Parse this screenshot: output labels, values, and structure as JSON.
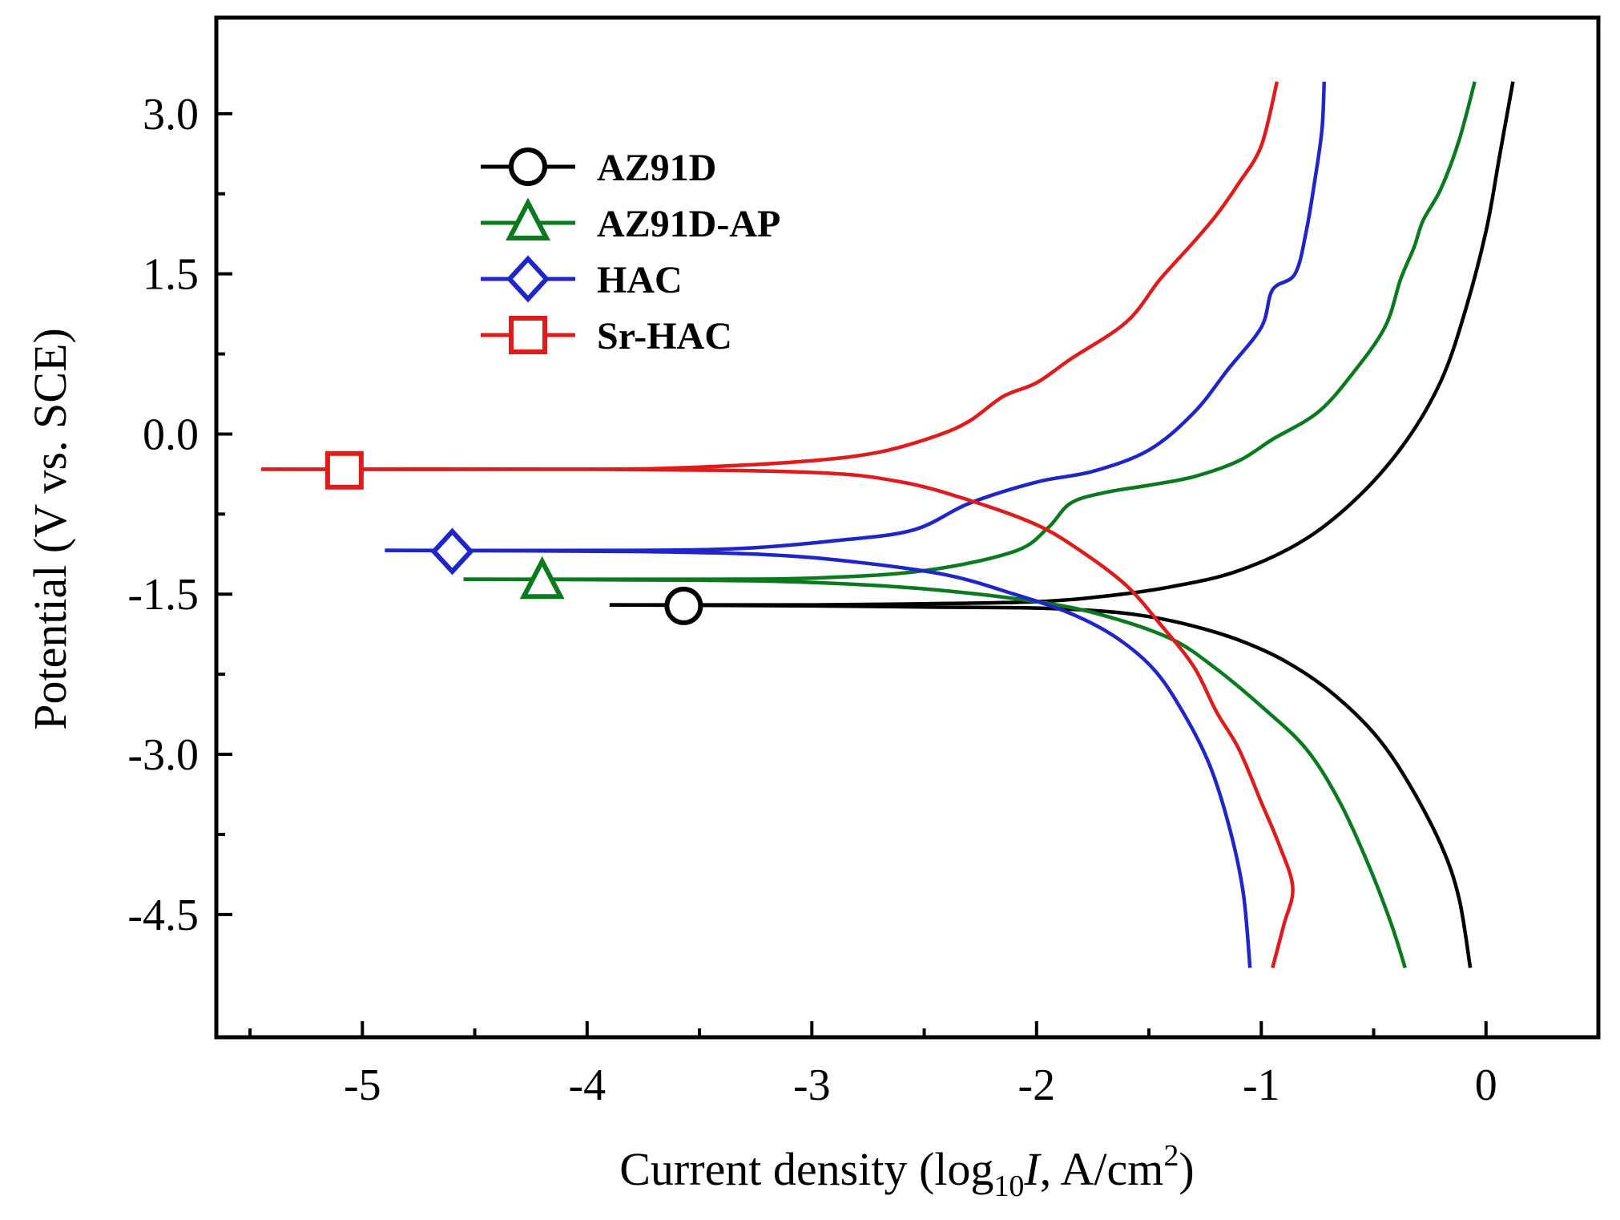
{
  "chart_data": {
    "type": "line",
    "title": "",
    "xlabel": {
      "prefix": "Current density (log",
      "sub": "10",
      "italic": "I",
      "unit": ", A/cm",
      "sup": "2",
      "close": ")"
    },
    "ylabel": "Potential (V vs. SCE)",
    "xlim": [
      -5.65,
      0.5
    ],
    "ylim": [
      -5.65,
      3.9
    ],
    "x_ticks": [
      -5,
      -4,
      -3,
      -2,
      -1,
      0
    ],
    "x_tick_labels": [
      "-5",
      "-4",
      "-3",
      "-2",
      "-1",
      "0"
    ],
    "x_minor_ticks": [
      -5.5,
      -4.5,
      -3.5,
      -2.5,
      -1.5,
      -0.5
    ],
    "y_ticks": [
      3.0,
      1.5,
      0.0,
      -1.5,
      -3.0,
      -4.5
    ],
    "y_tick_labels": [
      "3.0",
      "1.5",
      "0.0",
      "-1.5",
      "-3.0",
      "-4.5"
    ],
    "y_minor_ticks": [
      2.25,
      0.75,
      -0.75,
      -2.25,
      -3.75
    ],
    "grid": false,
    "legend_position": "top-left",
    "series": [
      {
        "name": "AZ91D",
        "color": "#000000",
        "marker": "circle",
        "marker_point": [
          -3.57,
          -1.61
        ],
        "anodic": [
          [
            -3.9,
            -1.6
          ],
          [
            -3.0,
            -1.6
          ],
          [
            -2.5,
            -1.59
          ],
          [
            -2.0,
            -1.57
          ],
          [
            -1.7,
            -1.52
          ],
          [
            -1.4,
            -1.43
          ],
          [
            -1.1,
            -1.28
          ],
          [
            -0.8,
            -0.98
          ],
          [
            -0.55,
            -0.55
          ],
          [
            -0.35,
            -0.05
          ],
          [
            -0.2,
            0.5
          ],
          [
            -0.1,
            1.1
          ],
          [
            0.0,
            1.9
          ],
          [
            0.06,
            2.6
          ],
          [
            0.12,
            3.3
          ]
        ],
        "cathodic": [
          [
            -3.9,
            -1.6
          ],
          [
            -3.0,
            -1.61
          ],
          [
            -2.5,
            -1.62
          ],
          [
            -2.0,
            -1.63
          ],
          [
            -1.7,
            -1.66
          ],
          [
            -1.5,
            -1.71
          ],
          [
            -1.3,
            -1.8
          ],
          [
            -1.1,
            -1.93
          ],
          [
            -0.9,
            -2.12
          ],
          [
            -0.7,
            -2.4
          ],
          [
            -0.5,
            -2.8
          ],
          [
            -0.35,
            -3.25
          ],
          [
            -0.2,
            -3.85
          ],
          [
            -0.12,
            -4.35
          ],
          [
            -0.07,
            -5.0
          ]
        ]
      },
      {
        "name": "AZ91D-AP",
        "color": "#0a7a1f",
        "marker": "triangle",
        "marker_point": [
          -4.2,
          -1.38
        ],
        "anodic": [
          [
            -4.55,
            -1.36
          ],
          [
            -3.5,
            -1.36
          ],
          [
            -3.0,
            -1.35
          ],
          [
            -2.5,
            -1.28
          ],
          [
            -2.1,
            -1.1
          ],
          [
            -1.95,
            -0.88
          ],
          [
            -1.85,
            -0.65
          ],
          [
            -1.7,
            -0.55
          ],
          [
            -1.5,
            -0.48
          ],
          [
            -1.3,
            -0.4
          ],
          [
            -1.1,
            -0.25
          ],
          [
            -0.95,
            -0.05
          ],
          [
            -0.75,
            0.2
          ],
          [
            -0.6,
            0.55
          ],
          [
            -0.45,
            1.0
          ],
          [
            -0.38,
            1.45
          ],
          [
            -0.32,
            1.75
          ],
          [
            -0.28,
            2.0
          ],
          [
            -0.2,
            2.3
          ],
          [
            -0.12,
            2.75
          ],
          [
            -0.05,
            3.3
          ]
        ],
        "cathodic": [
          [
            -4.55,
            -1.36
          ],
          [
            -3.5,
            -1.37
          ],
          [
            -3.0,
            -1.39
          ],
          [
            -2.5,
            -1.45
          ],
          [
            -2.0,
            -1.57
          ],
          [
            -1.7,
            -1.7
          ],
          [
            -1.4,
            -1.92
          ],
          [
            -1.2,
            -2.2
          ],
          [
            -1.0,
            -2.55
          ],
          [
            -0.8,
            -2.95
          ],
          [
            -0.65,
            -3.45
          ],
          [
            -0.52,
            -4.05
          ],
          [
            -0.42,
            -4.6
          ],
          [
            -0.36,
            -5.0
          ]
        ]
      },
      {
        "name": "HAC",
        "color": "#1f26c9",
        "marker": "diamond",
        "marker_point": [
          -4.6,
          -1.1
        ],
        "anodic": [
          [
            -4.9,
            -1.09
          ],
          [
            -3.8,
            -1.09
          ],
          [
            -3.3,
            -1.07
          ],
          [
            -2.9,
            -1.0
          ],
          [
            -2.55,
            -0.9
          ],
          [
            -2.3,
            -0.65
          ],
          [
            -2.0,
            -0.45
          ],
          [
            -1.75,
            -0.35
          ],
          [
            -1.5,
            -0.15
          ],
          [
            -1.3,
            0.2
          ],
          [
            -1.15,
            0.6
          ],
          [
            -1.0,
            1.0
          ],
          [
            -0.95,
            1.35
          ],
          [
            -0.85,
            1.5
          ],
          [
            -0.8,
            1.9
          ],
          [
            -0.76,
            2.4
          ],
          [
            -0.73,
            2.85
          ],
          [
            -0.72,
            3.3
          ]
        ],
        "cathodic": [
          [
            -4.9,
            -1.09
          ],
          [
            -3.8,
            -1.1
          ],
          [
            -3.2,
            -1.13
          ],
          [
            -2.8,
            -1.2
          ],
          [
            -2.4,
            -1.32
          ],
          [
            -2.1,
            -1.5
          ],
          [
            -1.85,
            -1.68
          ],
          [
            -1.65,
            -1.9
          ],
          [
            -1.48,
            -2.2
          ],
          [
            -1.35,
            -2.6
          ],
          [
            -1.23,
            -3.1
          ],
          [
            -1.14,
            -3.7
          ],
          [
            -1.08,
            -4.3
          ],
          [
            -1.05,
            -5.0
          ]
        ]
      },
      {
        "name": "Sr-HAC",
        "color": "#e01b1b",
        "marker": "square",
        "marker_point": [
          -5.08,
          -0.34
        ],
        "anodic": [
          [
            -5.45,
            -0.33
          ],
          [
            -4.0,
            -0.33
          ],
          [
            -3.5,
            -0.31
          ],
          [
            -3.0,
            -0.25
          ],
          [
            -2.7,
            -0.17
          ],
          [
            -2.45,
            -0.02
          ],
          [
            -2.3,
            0.12
          ],
          [
            -2.15,
            0.35
          ],
          [
            -2.0,
            0.48
          ],
          [
            -1.85,
            0.7
          ],
          [
            -1.6,
            1.05
          ],
          [
            -1.45,
            1.45
          ],
          [
            -1.3,
            1.8
          ],
          [
            -1.2,
            2.05
          ],
          [
            -1.1,
            2.35
          ],
          [
            -1.0,
            2.7
          ],
          [
            -0.93,
            3.3
          ]
        ],
        "cathodic": [
          [
            -5.45,
            -0.33
          ],
          [
            -4.0,
            -0.33
          ],
          [
            -3.0,
            -0.36
          ],
          [
            -2.6,
            -0.45
          ],
          [
            -2.3,
            -0.62
          ],
          [
            -2.0,
            -0.85
          ],
          [
            -1.8,
            -1.1
          ],
          [
            -1.6,
            -1.42
          ],
          [
            -1.45,
            -1.78
          ],
          [
            -1.3,
            -2.18
          ],
          [
            -1.2,
            -2.6
          ],
          [
            -1.1,
            -2.95
          ],
          [
            -1.0,
            -3.45
          ],
          [
            -0.92,
            -3.85
          ],
          [
            -0.86,
            -4.25
          ],
          [
            -0.9,
            -4.6
          ],
          [
            -0.95,
            -5.0
          ]
        ]
      }
    ]
  }
}
